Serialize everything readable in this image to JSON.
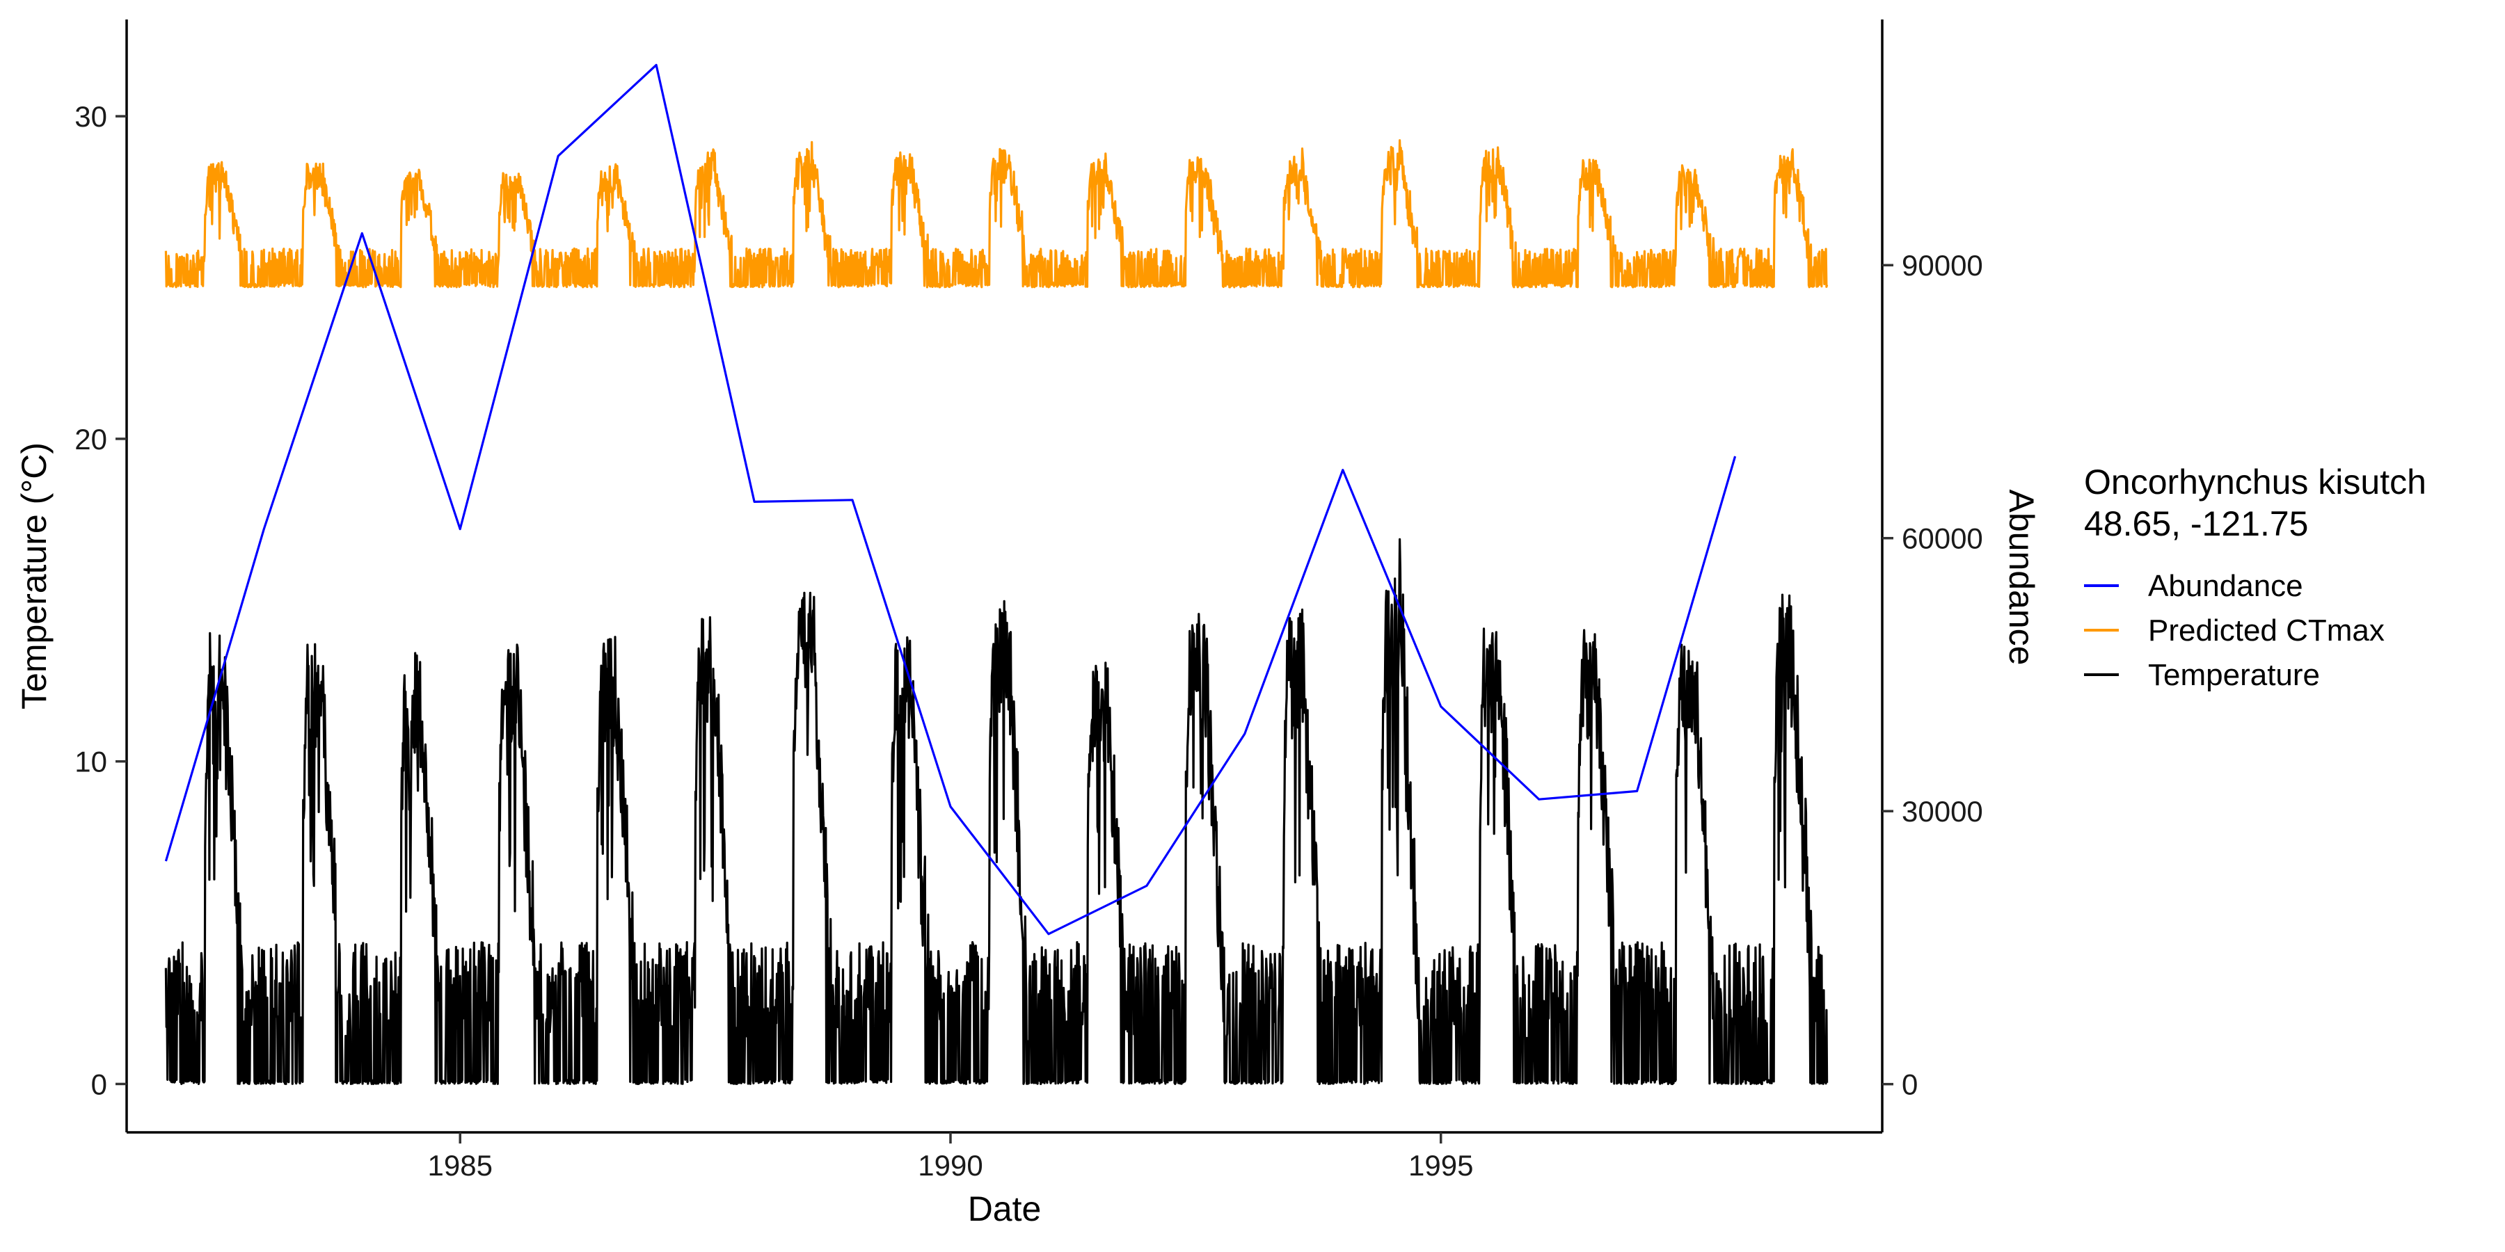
{
  "chart_data": {
    "type": "line",
    "xlabel": "Date",
    "ylabel": "Temperature (°C)",
    "y2label": "Abundance",
    "xlim": [
      1981.6,
      1999.5
    ],
    "ylim": [
      -1.5,
      33
    ],
    "y2lim": [
      -5300,
      117000
    ],
    "x_ticks": [
      1985,
      1990,
      1995
    ],
    "y_ticks": [
      0,
      10,
      20,
      30
    ],
    "y2_ticks": [
      0,
      30000,
      60000,
      90000
    ],
    "y2_tick_labels": [
      "0",
      "30000",
      "60000",
      "90000"
    ],
    "legend": {
      "title_lines": [
        "Oncorhynchus kisutch",
        "48.65, -121.75"
      ],
      "position": "right",
      "entries": [
        {
          "name": "Abundance",
          "color": "#0000ff"
        },
        {
          "name": "Predicted CTmax",
          "color": "#ff9900"
        },
        {
          "name": "Temperature",
          "color": "#000000"
        }
      ]
    },
    "series": [
      {
        "name": "Abundance",
        "axis": "right",
        "color": "#0000ff",
        "x": [
          1982,
          1983,
          1984,
          1985,
          1986,
          1987,
          1988,
          1989,
          1990,
          1991,
          1992,
          1993,
          1994,
          1995,
          1996,
          1997,
          1998
        ],
        "y": [
          24500,
          61000,
          93500,
          61000,
          102000,
          112000,
          64000,
          64200,
          30500,
          16500,
          21800,
          38500,
          67500,
          41500,
          31300,
          32200,
          69000
        ]
      },
      {
        "name": "Predicted CTmax",
        "axis": "left",
        "color": "#ff9900",
        "years": [
          1982,
          1983,
          1984,
          1985,
          1986,
          1987,
          1988,
          1989,
          1990,
          1991,
          1992,
          1993,
          1994,
          1995,
          1996,
          1997,
          1998
        ],
        "baseline": 24.7,
        "winter_level": 25.9,
        "summer_peaks": [
          28.6,
          28.6,
          28.4,
          28.4,
          28.5,
          28.9,
          29.1,
          28.9,
          29.0,
          28.7,
          28.8,
          28.8,
          29.1,
          29.0,
          28.7,
          28.5,
          29.0
        ]
      },
      {
        "name": "Temperature",
        "axis": "left",
        "color": "#000000",
        "years": [
          1982,
          1983,
          1984,
          1985,
          1986,
          1987,
          1988,
          1989,
          1990,
          1991,
          1992,
          1993,
          1994,
          1995,
          1996,
          1997,
          1998
        ],
        "baseline": 0,
        "winter_level": 4.4,
        "summer_peaks": [
          14.0,
          13.7,
          13.5,
          13.6,
          13.8,
          14.8,
          15.5,
          14.0,
          15.2,
          13.2,
          14.6,
          14.6,
          15.8,
          14.4,
          14.1,
          14.1,
          15.2
        ]
      }
    ]
  }
}
